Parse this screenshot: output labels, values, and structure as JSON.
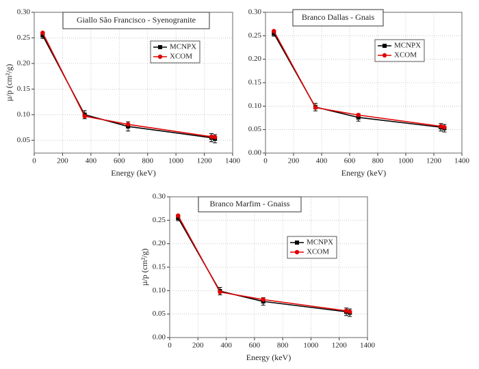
{
  "chart_data": [
    {
      "type": "line",
      "title": "Giallo São Francisco - Syenogranite",
      "x_label": "Energy (keV)",
      "y_label": "µ/p (cm²/g)",
      "x": [
        59.5,
        356,
        662,
        1250,
        1275
      ],
      "xlim": [
        0,
        1400
      ],
      "xticks": [
        0,
        200,
        400,
        600,
        800,
        1000,
        1200,
        1400
      ],
      "ylim": [
        0.025,
        0.3
      ],
      "yticks": [
        {
          "value": 0.05,
          "label": "0.05"
        },
        {
          "value": 0.1,
          "label": "0.10"
        },
        {
          "value": 0.15,
          "label": "0.15"
        },
        {
          "value": 0.2,
          "label": "0.20"
        },
        {
          "value": 0.25,
          "label": "0.25"
        },
        {
          "value": 0.3,
          "label": "0.30"
        }
      ],
      "grid": true,
      "series": [
        {
          "name": "MCNPX",
          "color": "#000000",
          "marker": "square",
          "values": [
            0.255,
            0.1,
            0.077,
            0.055,
            0.053
          ],
          "errors": [
            0.006,
            0.008,
            0.009,
            0.008,
            0.008
          ]
        },
        {
          "name": "XCOM",
          "color": "#e00000",
          "marker": "circle",
          "values": [
            0.26,
            0.097,
            0.081,
            0.057,
            0.056
          ]
        }
      ]
    },
    {
      "type": "line",
      "title": "Branco Dallas - Gnais",
      "x_label": "Energy (keV)",
      "y_label": null,
      "x": [
        59.5,
        356,
        662,
        1250,
        1275
      ],
      "xlim": [
        0,
        1400
      ],
      "xticks": [
        0,
        200,
        400,
        600,
        800,
        1000,
        1200,
        1400
      ],
      "ylim": [
        0,
        0.3
      ],
      "yticks": [
        {
          "value": 0,
          "label": "0.00"
        },
        {
          "value": 0.05,
          "label": "0.05"
        },
        {
          "value": 0.1,
          "label": "0.10"
        },
        {
          "value": 0.15,
          "label": "0.15"
        },
        {
          "value": 0.2,
          "label": "0.20"
        },
        {
          "value": 0.25,
          "label": "0.25"
        },
        {
          "value": 0.3,
          "label": "0.30"
        }
      ],
      "grid": true,
      "series": [
        {
          "name": "MCNPX",
          "color": "#000000",
          "marker": "square",
          "values": [
            0.255,
            0.098,
            0.076,
            0.055,
            0.053
          ],
          "errors": [
            0.006,
            0.008,
            0.008,
            0.008,
            0.008
          ]
        },
        {
          "name": "XCOM",
          "color": "#e00000",
          "marker": "circle",
          "values": [
            0.26,
            0.097,
            0.081,
            0.057,
            0.055
          ]
        }
      ]
    },
    {
      "type": "line",
      "title": "Branco Marfim - Gnaiss",
      "x_label": "Energy (keV)",
      "y_label": "µ/p (cm²/g)",
      "x": [
        59.5,
        356,
        662,
        1250,
        1275
      ],
      "xlim": [
        0,
        1400
      ],
      "xticks": [
        0,
        200,
        400,
        600,
        800,
        1000,
        1200,
        1400
      ],
      "ylim": [
        0,
        0.3
      ],
      "yticks": [
        {
          "value": 0,
          "label": "0.00"
        },
        {
          "value": 0.05,
          "label": "0.05"
        },
        {
          "value": 0.1,
          "label": "0.10"
        },
        {
          "value": 0.15,
          "label": "0.15"
        },
        {
          "value": 0.2,
          "label": "0.20"
        },
        {
          "value": 0.25,
          "label": "0.25"
        },
        {
          "value": 0.3,
          "label": "0.30"
        }
      ],
      "grid": true,
      "series": [
        {
          "name": "MCNPX",
          "color": "#000000",
          "marker": "square",
          "values": [
            0.255,
            0.099,
            0.077,
            0.055,
            0.053
          ],
          "errors": [
            0.006,
            0.008,
            0.008,
            0.008,
            0.008
          ]
        },
        {
          "name": "XCOM",
          "color": "#e00000",
          "marker": "circle",
          "values": [
            0.26,
            0.097,
            0.081,
            0.057,
            0.055
          ]
        }
      ]
    }
  ]
}
